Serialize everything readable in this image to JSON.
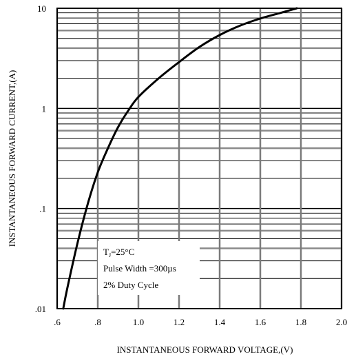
{
  "chart_data": {
    "type": "line",
    "title": "",
    "xlabel": "INSTANTANEOUS FORWARD VOLTAGE,(V)",
    "ylabel": "INSTANTANEOUS FORWARD CURRENT,(A)",
    "x_scale": "linear",
    "y_scale": "log",
    "xlim": [
      0.6,
      2.0
    ],
    "ylim": [
      0.01,
      10
    ],
    "x_ticks": [
      0.6,
      0.8,
      1.0,
      1.2,
      1.4,
      1.6,
      1.8,
      2.0
    ],
    "x_tick_labels": [
      ".6",
      ".8",
      "1.0",
      "1.2",
      "1.4",
      "1.6",
      "1.8",
      "2.0"
    ],
    "y_ticks": [
      0.01,
      0.1,
      1,
      10
    ],
    "y_tick_labels": [
      ".01",
      ".1",
      "1",
      "10"
    ],
    "grid": true,
    "series": [
      {
        "x": [
          0.63,
          0.65,
          0.7,
          0.75,
          0.8,
          0.85,
          0.9,
          0.95,
          1.0,
          1.1,
          1.2,
          1.3,
          1.4,
          1.5,
          1.6,
          1.7,
          1.78
        ],
        "y": [
          0.01,
          0.016,
          0.045,
          0.11,
          0.23,
          0.4,
          0.65,
          0.95,
          1.3,
          2.0,
          2.9,
          4.1,
          5.4,
          6.7,
          7.9,
          9.0,
          10.0
        ]
      }
    ],
    "annotations": [
      {
        "sub": "J",
        "prefix": "T",
        "suffix": "=25°C"
      },
      {
        "text": "Pulse Width =300µs"
      },
      {
        "text": "2% Duty Cycle"
      }
    ]
  }
}
